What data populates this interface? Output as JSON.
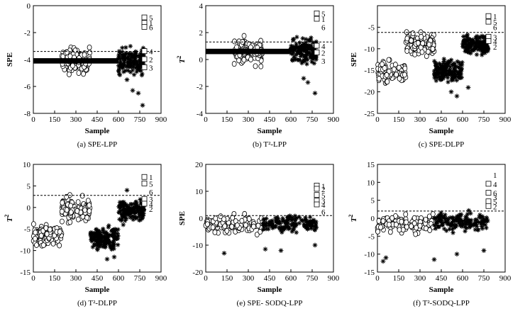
{
  "chart_data": [
    {
      "type": "scatter",
      "caption": "(a) SPE-LPP",
      "xlabel": "Sample",
      "ylabel": "SPE",
      "ylabel_sup": "",
      "xlim": [
        0,
        900
      ],
      "ylim": [
        -8,
        0
      ],
      "xticks": [
        0,
        150,
        300,
        450,
        600,
        750,
        900
      ],
      "yticks": [
        0,
        -2,
        -4,
        -6,
        -8
      ],
      "threshold": -3.4,
      "series": [
        {
          "marker": "circle",
          "x_range": [
            200,
            400
          ],
          "base": -4.1,
          "spread": 1.5
        },
        {
          "marker": "asterisk",
          "x_range": [
            600,
            780
          ],
          "base": -4.1,
          "spread": 1.6
        },
        {
          "marker": "band",
          "x_range": [
            0,
            600
          ],
          "base": -4.1,
          "spread": 0.2
        }
      ],
      "outliers": [
        [
          700,
          -6.3
        ],
        [
          740,
          -6.5
        ],
        [
          770,
          -7.4
        ],
        [
          660,
          -5.5
        ]
      ],
      "labels": [
        {
          "text": "5",
          "x": 785,
          "y": -0.9,
          "marker": "square"
        },
        {
          "text": "1",
          "x": 785,
          "y": -1.3,
          "marker": "square"
        },
        {
          "text": "6",
          "x": 785,
          "y": -1.6,
          "marker": "square"
        },
        {
          "text": "4",
          "x": 785,
          "y": -3.4,
          "marker": "square"
        },
        {
          "text": "2",
          "x": 785,
          "y": -4.0,
          "marker": "square"
        },
        {
          "text": "3",
          "x": 785,
          "y": -4.6,
          "marker": "square"
        }
      ]
    },
    {
      "type": "scatter",
      "caption": "(b) T²-LPP",
      "xlabel": "Sample",
      "ylabel": "T",
      "ylabel_sup": "2",
      "xlim": [
        0,
        900
      ],
      "ylim": [
        -4,
        4
      ],
      "xticks": [
        0,
        150,
        300,
        450,
        600,
        750,
        900
      ],
      "yticks": [
        4,
        2,
        0,
        -2,
        -4
      ],
      "threshold": 1.3,
      "series": [
        {
          "marker": "circle",
          "x_range": [
            200,
            400
          ],
          "base": 0.6,
          "spread": 1.5
        },
        {
          "marker": "asterisk",
          "x_range": [
            600,
            780
          ],
          "base": 0.6,
          "spread": 1.5
        },
        {
          "marker": "band",
          "x_range": [
            0,
            600
          ],
          "base": 0.6,
          "spread": 0.2
        }
      ],
      "outliers": [
        [
          690,
          -1.4
        ],
        [
          720,
          -1.7
        ],
        [
          770,
          -2.5
        ]
      ],
      "labels": [
        {
          "text": "5",
          "x": 785,
          "y": 3.4,
          "marker": "square"
        },
        {
          "text": "1",
          "x": 785,
          "y": 3.0,
          "marker": "square"
        },
        {
          "text": "6",
          "x": 785,
          "y": 2.4,
          "marker": "none"
        },
        {
          "text": "4",
          "x": 785,
          "y": 1.0,
          "marker": "square"
        },
        {
          "text": "2",
          "x": 785,
          "y": 0.5,
          "marker": "square"
        },
        {
          "text": "3",
          "x": 785,
          "y": -0.1,
          "marker": "none"
        }
      ]
    },
    {
      "type": "scatter",
      "caption": "(c) SPE-DLPP",
      "xlabel": "Sample",
      "ylabel": "SPE",
      "ylabel_sup": "",
      "xlim": [
        0,
        900
      ],
      "ylim": [
        -25,
        0
      ],
      "xticks": [
        0,
        150,
        300,
        450,
        600,
        750,
        900
      ],
      "yticks": [
        -5,
        -10,
        -15,
        -20,
        -25
      ],
      "threshold": -6.2,
      "series": [
        {
          "marker": "circle",
          "x_range": [
            0,
            200
          ],
          "base": -15.5,
          "spread": 4
        },
        {
          "marker": "circle",
          "x_range": [
            200,
            400
          ],
          "base": -9,
          "spread": 4
        },
        {
          "marker": "asterisk",
          "x_range": [
            400,
            600
          ],
          "base": -15,
          "spread": 4
        },
        {
          "marker": "asterisk",
          "x_range": [
            600,
            780
          ],
          "base": -9,
          "spread": 4
        }
      ],
      "outliers": [
        [
          520,
          -20
        ],
        [
          560,
          -21
        ],
        [
          640,
          -19
        ]
      ],
      "labels": [
        {
          "text": "1",
          "x": 785,
          "y": -2.5,
          "marker": "square"
        },
        {
          "text": "5",
          "x": 785,
          "y": -3.8,
          "marker": "square"
        },
        {
          "text": "6",
          "x": 785,
          "y": -5.0,
          "marker": "none"
        },
        {
          "text": "3",
          "x": 785,
          "y": -7.3,
          "marker": "square"
        },
        {
          "text": "4",
          "x": 785,
          "y": -8.3,
          "marker": "square"
        },
        {
          "text": "2",
          "x": 785,
          "y": -9.5,
          "marker": "none"
        }
      ]
    },
    {
      "type": "scatter",
      "caption": "(d) T²-DLPP",
      "xlabel": "Sample",
      "ylabel": "T",
      "ylabel_sup": "2",
      "xlim": [
        0,
        900
      ],
      "ylim": [
        -15,
        10
      ],
      "xticks": [
        0,
        150,
        300,
        450,
        600,
        750,
        900
      ],
      "yticks": [
        10,
        5,
        0,
        -5,
        -10,
        -15
      ],
      "threshold": 2.8,
      "series": [
        {
          "marker": "circle",
          "x_range": [
            0,
            200
          ],
          "base": -6.5,
          "spread": 4
        },
        {
          "marker": "circle",
          "x_range": [
            200,
            400
          ],
          "base": -0.5,
          "spread": 4
        },
        {
          "marker": "asterisk",
          "x_range": [
            400,
            600
          ],
          "base": -7,
          "spread": 4
        },
        {
          "marker": "asterisk",
          "x_range": [
            600,
            780
          ],
          "base": -1,
          "spread": 4
        }
      ],
      "outliers": [
        [
          520,
          -12
        ],
        [
          570,
          -11.5
        ],
        [
          660,
          4
        ]
      ],
      "labels": [
        {
          "text": "1",
          "x": 785,
          "y": 7.0,
          "marker": "square"
        },
        {
          "text": "5",
          "x": 785,
          "y": 5.5,
          "marker": "square"
        },
        {
          "text": "6",
          "x": 785,
          "y": 3.6,
          "marker": "none"
        },
        {
          "text": "3",
          "x": 785,
          "y": 1.9,
          "marker": "square"
        },
        {
          "text": "4",
          "x": 785,
          "y": 0.8,
          "marker": "square"
        },
        {
          "text": "2",
          "x": 785,
          "y": -0.4,
          "marker": "none"
        }
      ]
    },
    {
      "type": "scatter",
      "caption": "(e) SPE- SODQ-LPP",
      "xlabel": "Sample",
      "ylabel": "SPE",
      "ylabel_sup": "",
      "xlim": [
        0,
        900
      ],
      "ylim": [
        -20,
        20
      ],
      "xticks": [
        0,
        150,
        300,
        450,
        600,
        750,
        900
      ],
      "yticks": [
        20,
        10,
        0,
        -10,
        -20
      ],
      "threshold": 1.0,
      "series": [
        {
          "marker": "circle",
          "x_range": [
            0,
            400
          ],
          "base": -2.5,
          "spread": 5
        },
        {
          "marker": "asterisk",
          "x_range": [
            400,
            780
          ],
          "base": -2.0,
          "spread": 5
        }
      ],
      "outliers": [
        [
          130,
          -13
        ],
        [
          420,
          -11.5
        ],
        [
          530,
          -12
        ],
        [
          770,
          -10
        ]
      ],
      "labels": [
        {
          "text": "1",
          "x": 785,
          "y": 12.0,
          "marker": "square"
        },
        {
          "text": "2",
          "x": 785,
          "y": 10.8,
          "marker": "square"
        },
        {
          "text": "5",
          "x": 785,
          "y": 8.5,
          "marker": "square"
        },
        {
          "text": "3",
          "x": 785,
          "y": 6.4,
          "marker": "square"
        },
        {
          "text": "4",
          "x": 785,
          "y": 5.0,
          "marker": "square"
        },
        {
          "text": "6",
          "x": 785,
          "y": 2.4,
          "marker": "none"
        }
      ]
    },
    {
      "type": "scatter",
      "caption": "(f) T²-SODQ-LPP",
      "xlabel": "Sample",
      "ylabel": "T",
      "ylabel_sup": "2",
      "xlim": [
        0,
        900
      ],
      "ylim": [
        -15,
        15
      ],
      "xticks": [
        0,
        150,
        300,
        450,
        600,
        750,
        900
      ],
      "yticks": [
        15,
        10,
        5,
        0,
        -5,
        -10,
        -15
      ],
      "threshold": 2.0,
      "series": [
        {
          "marker": "circle",
          "x_range": [
            0,
            400
          ],
          "base": -1.5,
          "spread": 4
        },
        {
          "marker": "asterisk",
          "x_range": [
            400,
            780
          ],
          "base": -1.0,
          "spread": 4
        }
      ],
      "outliers": [
        [
          40,
          -12
        ],
        [
          60,
          -11
        ],
        [
          400,
          -11.5
        ],
        [
          560,
          -10
        ],
        [
          750,
          -9
        ]
      ],
      "labels": [
        {
          "text": "1",
          "x": 785,
          "y": 12.0,
          "marker": "none"
        },
        {
          "text": "4",
          "x": 785,
          "y": 9.5,
          "marker": "square"
        },
        {
          "text": "6",
          "x": 785,
          "y": 7.0,
          "marker": "square"
        },
        {
          "text": "3",
          "x": 785,
          "y": 5.8,
          "marker": "none"
        },
        {
          "text": "5",
          "x": 785,
          "y": 4.6,
          "marker": "square"
        },
        {
          "text": "2",
          "x": 785,
          "y": 3.3,
          "marker": "square"
        }
      ]
    }
  ]
}
